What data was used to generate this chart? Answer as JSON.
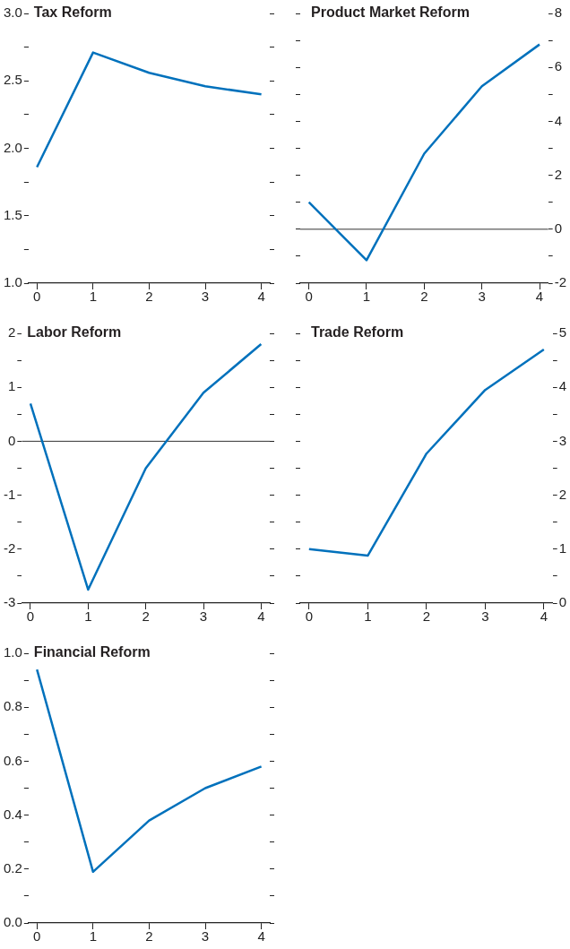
{
  "chart_data": [
    {
      "type": "line",
      "title": "Tax Reform",
      "x": [
        0,
        1,
        2,
        3,
        4
      ],
      "xlim": [
        -0.15,
        4.15
      ],
      "xticks": [
        0,
        1,
        2,
        3,
        4
      ],
      "ylim": [
        1,
        3
      ],
      "yticks": [
        {
          "value": 1,
          "label": "1.0"
        },
        {
          "value": 1.25,
          "label": null
        },
        {
          "value": 1.5,
          "label": "1.5"
        },
        {
          "value": 1.75,
          "label": null
        },
        {
          "value": 2,
          "label": "2.0"
        },
        {
          "value": 2.25,
          "label": null
        },
        {
          "value": 2.5,
          "label": "2.5"
        },
        {
          "value": 2.75,
          "label": null
        },
        {
          "value": 3,
          "label": "3.0"
        }
      ],
      "grid": false,
      "legend": false,
      "marker": "none",
      "line_style": "solid",
      "series": [
        {
          "color": "#0071bc",
          "values": [
            1.86,
            2.71,
            2.56,
            2.46,
            2.4
          ]
        }
      ]
    },
    {
      "type": "line",
      "title": "Product Market Reform",
      "x": [
        0,
        1,
        2,
        3,
        4
      ],
      "xlim": [
        -0.15,
        4.15
      ],
      "xticks": [
        0,
        1,
        2,
        3,
        4
      ],
      "y2lim": [
        -2,
        8
      ],
      "y2ticks": [
        -2,
        {
          "value": -1,
          "label": null
        },
        0,
        {
          "value": 1,
          "label": null
        },
        2,
        {
          "value": 3,
          "label": null
        },
        4,
        {
          "value": 5,
          "label": null
        },
        6,
        {
          "value": 7,
          "label": null
        },
        8
      ],
      "grid": false,
      "legend": false,
      "marker": "none",
      "line_style": "solid",
      "ref_lines": [
        {
          "axis": "y2",
          "value": 0,
          "color": "#333333"
        }
      ],
      "series": [
        {
          "color": "#0071bc",
          "axis": "y2",
          "values": [
            1.0,
            -1.15,
            2.8,
            5.3,
            6.85
          ]
        }
      ]
    },
    {
      "type": "line",
      "title": "Labor Reform",
      "x": [
        0,
        1,
        2,
        3,
        4
      ],
      "xlim": [
        -0.15,
        4.15
      ],
      "xticks": [
        0,
        1,
        2,
        3,
        4
      ],
      "ylim": [
        -3,
        2
      ],
      "yticks": [
        -3,
        {
          "value": -2.5,
          "label": null
        },
        -2,
        {
          "value": -1.5,
          "label": null
        },
        -1,
        {
          "value": -0.5,
          "label": null
        },
        0,
        {
          "value": 0.5,
          "label": null
        },
        1,
        {
          "value": 1.5,
          "label": null
        },
        2
      ],
      "grid": false,
      "legend": false,
      "marker": "none",
      "line_style": "solid",
      "ref_lines": [
        {
          "axis": "y",
          "value": 0,
          "color": "#333333"
        }
      ],
      "series": [
        {
          "color": "#0071bc",
          "values": [
            0.7,
            -2.75,
            -0.5,
            0.9,
            1.8
          ]
        }
      ]
    },
    {
      "type": "line",
      "title": "Trade Reform",
      "x": [
        0,
        1,
        2,
        3,
        4
      ],
      "xlim": [
        -0.15,
        4.15
      ],
      "xticks": [
        0,
        1,
        2,
        3,
        4
      ],
      "y2lim": [
        0,
        5
      ],
      "y2ticks": [
        0,
        {
          "value": 0.5,
          "label": null
        },
        1,
        {
          "value": 1.5,
          "label": null
        },
        2,
        {
          "value": 2.5,
          "label": null
        },
        3,
        {
          "value": 3.5,
          "label": null
        },
        4,
        {
          "value": 4.5,
          "label": null
        },
        5
      ],
      "grid": false,
      "legend": false,
      "marker": "none",
      "line_style": "solid",
      "series": [
        {
          "color": "#0071bc",
          "axis": "y2",
          "values": [
            1.0,
            0.88,
            2.77,
            3.95,
            4.7
          ]
        }
      ]
    },
    {
      "type": "line",
      "title": "Financial Reform",
      "x": [
        0,
        1,
        2,
        3,
        4
      ],
      "xlim": [
        -0.15,
        4.15
      ],
      "xticks": [
        0,
        1,
        2,
        3,
        4
      ],
      "ylim": [
        0,
        1
      ],
      "yticks": [
        {
          "value": 0,
          "label": "0.0"
        },
        {
          "value": 0.1,
          "label": null
        },
        {
          "value": 0.2,
          "label": "0.2"
        },
        {
          "value": 0.3,
          "label": null
        },
        {
          "value": 0.4,
          "label": "0.4"
        },
        {
          "value": 0.5,
          "label": null
        },
        {
          "value": 0.6,
          "label": "0.6"
        },
        {
          "value": 0.7,
          "label": null
        },
        {
          "value": 0.8,
          "label": "0.8"
        },
        {
          "value": 0.9,
          "label": null
        },
        {
          "value": 1,
          "label": "1.0"
        }
      ],
      "grid": false,
      "legend": false,
      "marker": "none",
      "line_style": "solid",
      "series": [
        {
          "color": "#0071bc",
          "values": [
            0.94,
            0.19,
            0.38,
            0.5,
            0.58
          ]
        }
      ]
    }
  ]
}
